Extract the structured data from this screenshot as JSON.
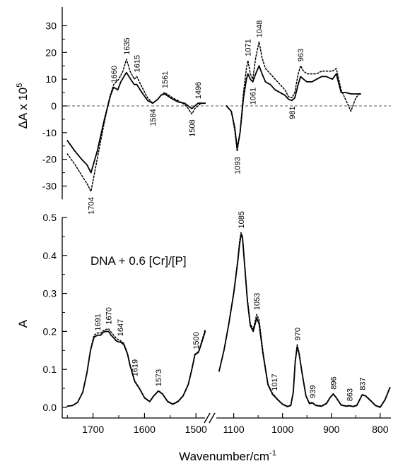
{
  "chart_data": [
    {
      "type": "line",
      "panel": "top",
      "ylabel": "ΔA x 10",
      "ylabel_exponent": "5",
      "ylim": [
        -37,
        37
      ],
      "yticks": [
        -30,
        -20,
        -10,
        0,
        10,
        20,
        30
      ],
      "zero_line": "dashed",
      "series": [
        {
          "style": "solid",
          "segments": [
            {
              "x": [
                1750,
                1735,
                1722,
                1712,
                1704,
                1692,
                1678,
                1666,
                1660,
                1652,
                1646,
                1640,
                1635,
                1627,
                1620,
                1615,
                1605,
                1594,
                1584,
                1574,
                1568,
                1561,
                1553,
                1545,
                1535,
                1522,
                1515,
                1508,
                1502,
                1496,
                1490,
                1482
              ],
              "y": [
                -13,
                -17,
                -20,
                -22,
                -25,
                -17,
                -5,
                4,
                7,
                6,
                9,
                11,
                12.5,
                10,
                8,
                8,
                5,
                2,
                1,
                2.5,
                4,
                4.5,
                3.5,
                2.5,
                1.5,
                1,
                0,
                -1,
                0,
                1,
                1,
                1
              ]
            },
            {
              "x": [
                1115,
                1105,
                1098,
                1093,
                1087,
                1080,
                1074,
                1071,
                1066,
                1061,
                1055,
                1048,
                1042,
                1035,
                1025,
                1015,
                1005,
                995,
                988,
                981,
                975,
                968,
                963,
                957,
                950,
                940,
                930,
                920,
                910,
                898,
                890,
                880,
                870,
                860,
                850,
                840
              ],
              "y": [
                0,
                -2,
                -8,
                -16,
                -10,
                3,
                10,
                12,
                10,
                9,
                12,
                15,
                12,
                9,
                8,
                6,
                5,
                4,
                2.5,
                2,
                3,
                8,
                11,
                10,
                9,
                9,
                10,
                11,
                11,
                10,
                12,
                5,
                5,
                4.5,
                4.5,
                4.5
              ]
            }
          ]
        },
        {
          "style": "dotted",
          "segments": [
            {
              "x": [
                1750,
                1735,
                1722,
                1712,
                1704,
                1694,
                1680,
                1668,
                1660,
                1650,
                1642,
                1635,
                1628,
                1620,
                1615,
                1605,
                1594,
                1584,
                1574,
                1568,
                1561,
                1553,
                1545,
                1535,
                1522,
                1515,
                1508,
                1502,
                1496,
                1490,
                1482
              ],
              "y": [
                -18,
                -22,
                -26,
                -29,
                -32,
                -22,
                -8,
                3,
                8,
                10,
                13,
                17.5,
                13,
                10,
                11,
                7,
                3,
                1,
                2.5,
                4,
                5,
                4,
                3,
                2,
                0.5,
                -1,
                -3,
                -1,
                0,
                1,
                1
              ]
            },
            {
              "x": [
                1115,
                1105,
                1098,
                1093,
                1087,
                1080,
                1074,
                1071,
                1066,
                1061,
                1055,
                1048,
                1042,
                1035,
                1025,
                1015,
                1005,
                995,
                988,
                981,
                975,
                968,
                963,
                957,
                950,
                940,
                930,
                920,
                910,
                898,
                890,
                880,
                870,
                860,
                850,
                840
              ],
              "y": [
                0,
                -2,
                -9,
                -17,
                -10,
                5,
                14,
                17,
                12,
                10,
                18,
                24,
                18,
                14,
                12,
                10,
                8,
                6,
                3.5,
                3,
                5,
                12,
                15,
                13,
                12,
                12,
                12,
                13,
                13,
                13,
                14,
                6,
                2,
                -2,
                3,
                5
              ]
            }
          ]
        }
      ],
      "annotations": [
        {
          "text": "1660",
          "x": 1660,
          "y": 7
        },
        {
          "text": "1635",
          "x": 1635,
          "y": 17.5
        },
        {
          "text": "1615",
          "x": 1615,
          "y": 11
        },
        {
          "text": "1561",
          "x": 1561,
          "y": 5
        },
        {
          "text": "1496",
          "x": 1496,
          "y": 1
        },
        {
          "text": "1584",
          "x": 1584,
          "y": 1,
          "below": true
        },
        {
          "text": "1508",
          "x": 1508,
          "y": -3,
          "below": true
        },
        {
          "text": "1704",
          "x": 1704,
          "y": -32,
          "below": true
        },
        {
          "text": "1071",
          "x": 1071,
          "y": 17
        },
        {
          "text": "1048",
          "x": 1048,
          "y": 24
        },
        {
          "text": "963",
          "x": 963,
          "y": 15
        },
        {
          "text": "1061",
          "x": 1061,
          "y": 9,
          "below": true
        },
        {
          "text": "981",
          "x": 981,
          "y": 2,
          "below": true
        },
        {
          "text": "1093",
          "x": 1093,
          "y": -17,
          "below": true
        }
      ]
    },
    {
      "type": "line",
      "panel": "bottom",
      "ylabel": "A",
      "xlabel": "Wavenumber/cm",
      "xlabel_exponent": "-1",
      "annotation": "DNA + 0.6 [Cr]/[P]",
      "ylim": [
        -0.028,
        0.5
      ],
      "yticks": [
        0.0,
        0.1,
        0.2,
        0.3,
        0.4,
        0.5
      ],
      "ytick_labels": [
        "0.0",
        "0.1",
        "0.2",
        "0.3",
        "0.4",
        "0.5"
      ],
      "x_axis_break": true,
      "xticks": [
        1700,
        1600,
        1500,
        1100,
        1000,
        900,
        800
      ],
      "series": [
        {
          "style": "solid",
          "segments": [
            {
              "x": [
                1750,
                1740,
                1730,
                1720,
                1712,
                1705,
                1698,
                1691,
                1685,
                1680,
                1675,
                1670,
                1665,
                1660,
                1655,
                1650,
                1647,
                1640,
                1633,
                1628,
                1619,
                1610,
                1600,
                1590,
                1582,
                1573,
                1565,
                1555,
                1545,
                1535,
                1525,
                1515,
                1508,
                1502,
                1495,
                1490,
                1482
              ],
              "y": [
                0.003,
                0.005,
                0.013,
                0.04,
                0.09,
                0.15,
                0.185,
                0.19,
                0.19,
                0.198,
                0.2,
                0.2,
                0.19,
                0.183,
                0.175,
                0.172,
                0.172,
                0.165,
                0.14,
                0.11,
                0.068,
                0.05,
                0.025,
                0.015,
                0.03,
                0.043,
                0.035,
                0.015,
                0.008,
                0.015,
                0.03,
                0.06,
                0.1,
                0.138,
                0.145,
                0.165,
                0.2
              ]
            },
            {
              "x": [
                1130,
                1120,
                1110,
                1100,
                1092,
                1088,
                1085,
                1082,
                1078,
                1072,
                1066,
                1060,
                1053,
                1048,
                1040,
                1030,
                1020,
                1017,
                1010,
                1000,
                990,
                983,
                978,
                974,
                970,
                966,
                960,
                952,
                945,
                939,
                932,
                920,
                910,
                903,
                896,
                890,
                880,
                870,
                863,
                855,
                848,
                840,
                837,
                830,
                820,
                810,
                800,
                790,
                780
              ],
              "y": [
                0.095,
                0.15,
                0.22,
                0.3,
                0.38,
                0.43,
                0.455,
                0.445,
                0.38,
                0.28,
                0.215,
                0.2,
                0.235,
                0.22,
                0.14,
                0.06,
                0.033,
                0.03,
                0.02,
                0.008,
                0.002,
                0.005,
                0.04,
                0.12,
                0.16,
                0.14,
                0.09,
                0.03,
                0.01,
                0.012,
                0.005,
                0.003,
                0.01,
                0.025,
                0.035,
                0.025,
                0.006,
                0.003,
                0.004,
                0.002,
                0.005,
                0.025,
                0.033,
                0.03,
                0.018,
                0.005,
                0.0,
                0.02,
                0.052
              ]
            }
          ]
        },
        {
          "style": "dotted",
          "segments": [
            {
              "x": [
                1750,
                1740,
                1730,
                1720,
                1712,
                1705,
                1698,
                1691,
                1685,
                1680,
                1675,
                1670,
                1665,
                1660,
                1655,
                1650,
                1647,
                1640,
                1633,
                1628,
                1619,
                1610,
                1600,
                1590,
                1582,
                1573,
                1565,
                1555,
                1545,
                1535,
                1525,
                1515,
                1508,
                1502,
                1495,
                1490,
                1482
              ],
              "y": [
                0.003,
                0.005,
                0.013,
                0.04,
                0.09,
                0.152,
                0.19,
                0.196,
                0.196,
                0.202,
                0.205,
                0.207,
                0.198,
                0.19,
                0.182,
                0.177,
                0.176,
                0.168,
                0.142,
                0.112,
                0.07,
                0.051,
                0.026,
                0.016,
                0.031,
                0.044,
                0.036,
                0.016,
                0.009,
                0.016,
                0.031,
                0.061,
                0.102,
                0.14,
                0.147,
                0.168,
                0.205
              ]
            },
            {
              "x": [
                1130,
                1120,
                1110,
                1100,
                1092,
                1088,
                1085,
                1082,
                1078,
                1072,
                1066,
                1060,
                1053,
                1048,
                1040,
                1030,
                1020,
                1017,
                1010,
                1000,
                990,
                983,
                978,
                974,
                970,
                966,
                960,
                952,
                945,
                939,
                932,
                920,
                910,
                903,
                896,
                890,
                880,
                870,
                863,
                855,
                848,
                840,
                837,
                830,
                820,
                810,
                800,
                790,
                780
              ],
              "y": [
                0.095,
                0.15,
                0.222,
                0.303,
                0.385,
                0.437,
                0.46,
                0.45,
                0.385,
                0.285,
                0.22,
                0.205,
                0.245,
                0.23,
                0.145,
                0.062,
                0.035,
                0.032,
                0.021,
                0.009,
                0.003,
                0.006,
                0.042,
                0.123,
                0.165,
                0.143,
                0.092,
                0.031,
                0.011,
                0.013,
                0.006,
                0.004,
                0.011,
                0.026,
                0.036,
                0.026,
                0.007,
                0.004,
                0.005,
                0.003,
                0.006,
                0.026,
                0.034,
                0.031,
                0.019,
                0.006,
                0.001,
                0.021,
                0.053
              ]
            }
          ]
        }
      ],
      "annotations": [
        {
          "text": "1691",
          "x": 1691,
          "y": 0.19
        },
        {
          "text": "1670",
          "x": 1670,
          "y": 0.207
        },
        {
          "text": "1647",
          "x": 1647,
          "y": 0.176
        },
        {
          "text": "1619",
          "x": 1619,
          "y": 0.07
        },
        {
          "text": "1573",
          "x": 1573,
          "y": 0.044
        },
        {
          "text": "1500",
          "x": 1500,
          "y": 0.142
        },
        {
          "text": "1085",
          "x": 1085,
          "y": 0.46
        },
        {
          "text": "1053",
          "x": 1053,
          "y": 0.245
        },
        {
          "text": "1017",
          "x": 1017,
          "y": 0.032
        },
        {
          "text": "970",
          "x": 970,
          "y": 0.165
        },
        {
          "text": "939",
          "x": 939,
          "y": 0.013
        },
        {
          "text": "896",
          "x": 896,
          "y": 0.036
        },
        {
          "text": "863",
          "x": 863,
          "y": 0.005
        },
        {
          "text": "837",
          "x": 837,
          "y": 0.034
        }
      ]
    }
  ]
}
